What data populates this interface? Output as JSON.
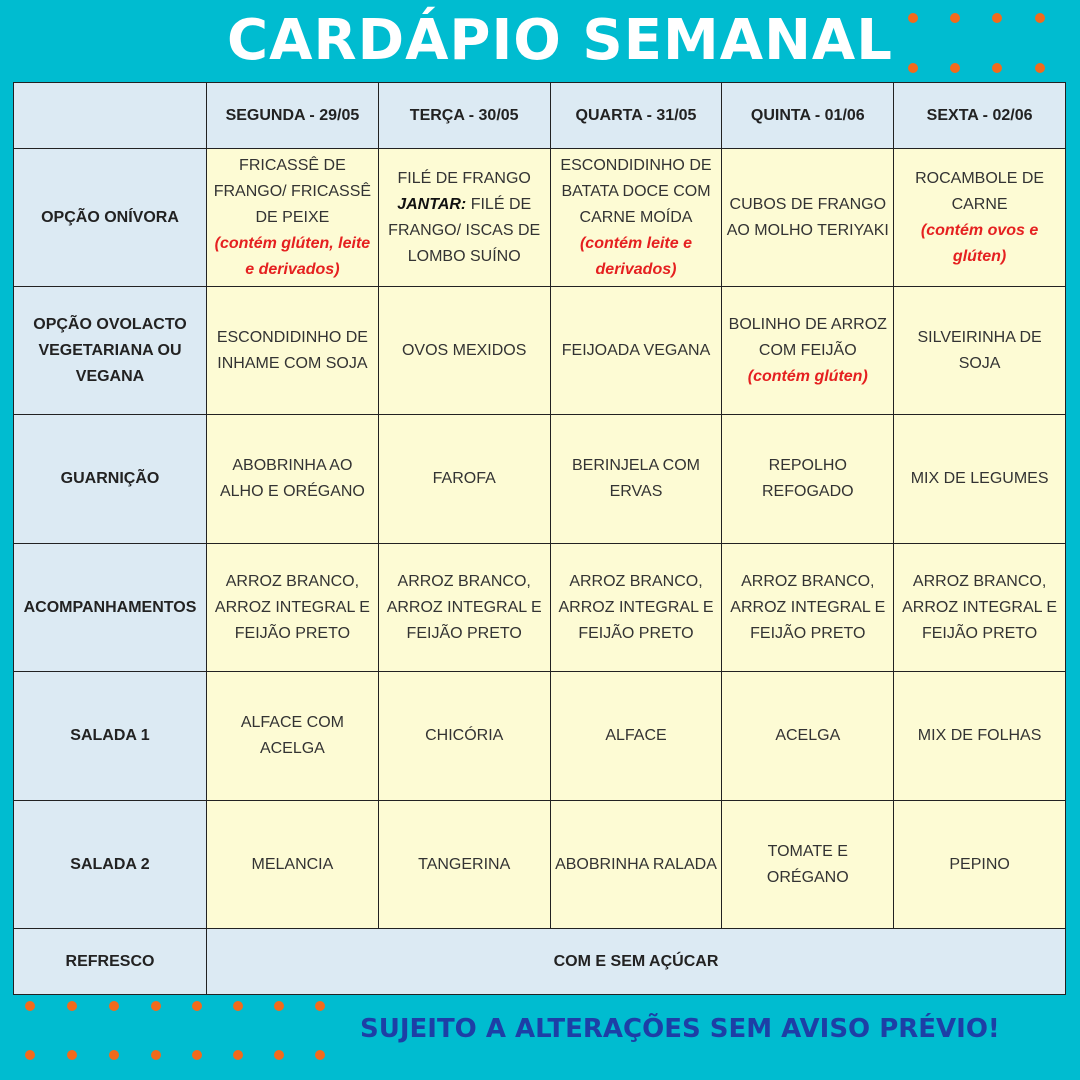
{
  "title": "CARDÁPIO SEMANAL",
  "footer": "SUJEITO A ALTERAÇÕES SEM AVISO PRÉVIO!",
  "colors": {
    "background": "#00bcd0",
    "dots": "#f26a1b",
    "footer_text": "#1d3fa6",
    "note": "#e52020",
    "header_cell": "#dceaf3",
    "body_cell": "#fdfbd4"
  },
  "table": {
    "days": [
      "SEGUNDA - 29/05",
      "TERÇA - 30/05",
      "QUARTA - 31/05",
      "QUINTA - 01/06",
      "SEXTA - 02/06"
    ],
    "rows": [
      {
        "label": "OPÇÃO ONÍVORA",
        "cells": [
          {
            "main": "FRICASSÊ DE FRANGO/ FRICASSÊ DE PEIXE",
            "note": "(contém glúten, leite e derivados)"
          },
          {
            "main": "FILÉ DE FRANGO",
            "label": "JANTAR:",
            "rest": "FILÉ DE FRANGO/ ISCAS DE LOMBO SUÍNO"
          },
          {
            "main": "ESCONDIDINHO DE BATATA DOCE COM CARNE MOÍDA",
            "note": "(contém leite e derivados)"
          },
          {
            "main": "CUBOS DE FRANGO AO MOLHO TERIYAKI"
          },
          {
            "main": "ROCAMBOLE DE CARNE",
            "note": "(contém ovos e glúten)"
          }
        ]
      },
      {
        "label": "OPÇÃO OVOLACTO VEGETARIANA OU VEGANA",
        "cells": [
          {
            "main": "ESCONDIDINHO DE INHAME COM SOJA"
          },
          {
            "main": "OVOS MEXIDOS"
          },
          {
            "main": "FEIJOADA VEGANA"
          },
          {
            "main": "BOLINHO DE ARROZ COM FEIJÃO",
            "note": "(contém glúten)"
          },
          {
            "main": "SILVEIRINHA DE SOJA"
          }
        ]
      },
      {
        "label": "GUARNIÇÃO",
        "cells": [
          {
            "main": "ABOBRINHA AO ALHO E ORÉGANO"
          },
          {
            "main": "FAROFA"
          },
          {
            "main": "BERINJELA COM ERVAS"
          },
          {
            "main": "REPOLHO REFOGADO"
          },
          {
            "main": "MIX DE LEGUMES"
          }
        ]
      },
      {
        "label": "ACOMPANHAMENTOS",
        "cells": [
          {
            "main": "ARROZ BRANCO, ARROZ INTEGRAL E FEIJÃO PRETO"
          },
          {
            "main": "ARROZ BRANCO, ARROZ INTEGRAL E FEIJÃO PRETO"
          },
          {
            "main": "ARROZ BRANCO, ARROZ INTEGRAL E FEIJÃO PRETO"
          },
          {
            "main": "ARROZ BRANCO, ARROZ INTEGRAL E FEIJÃO PRETO"
          },
          {
            "main": "ARROZ BRANCO, ARROZ INTEGRAL E FEIJÃO PRETO"
          }
        ]
      },
      {
        "label": "SALADA 1",
        "cells": [
          {
            "main": "ALFACE COM ACELGA"
          },
          {
            "main": "CHICÓRIA"
          },
          {
            "main": "ALFACE"
          },
          {
            "main": "ACELGA"
          },
          {
            "main": "MIX DE FOLHAS"
          }
        ]
      },
      {
        "label": "SALADA 2",
        "cells": [
          {
            "main": "MELANCIA"
          },
          {
            "main": "TANGERINA"
          },
          {
            "main": "ABOBRINHA RALADA"
          },
          {
            "main": "TOMATE E ORÉGANO"
          },
          {
            "main": "PEPINO"
          }
        ]
      }
    ],
    "refresco": {
      "label": "REFRESCO",
      "value": "COM E SEM AÇÚCAR"
    }
  }
}
